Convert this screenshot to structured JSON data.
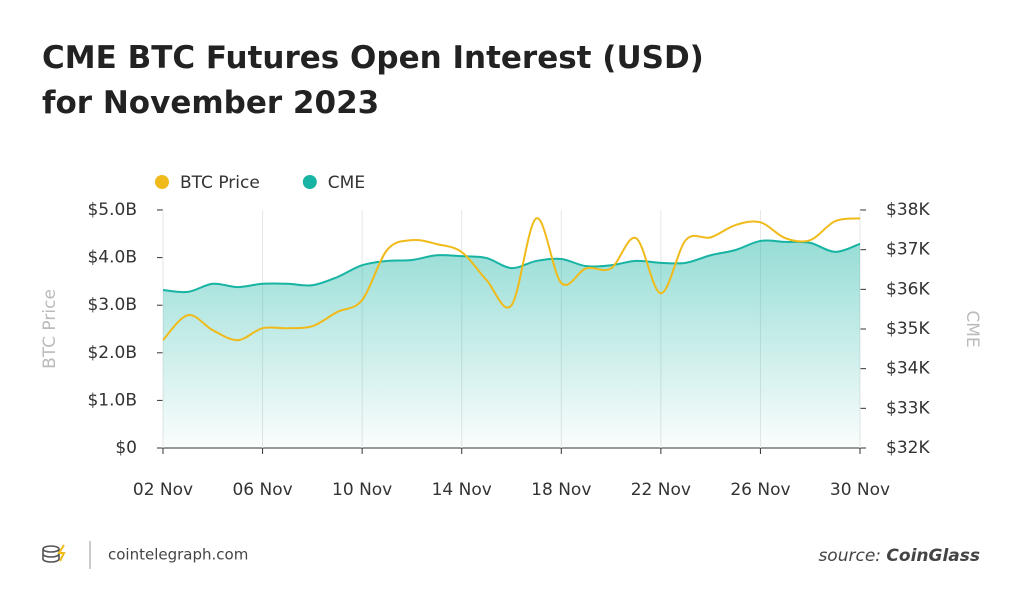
{
  "chart_data": {
    "type": "line",
    "title": "CME BTC Futures Open Interest (USD) for November 2023",
    "y_label": "BTC Price",
    "y2_label": "CME",
    "categories": [
      "02 Nov",
      null,
      null,
      null,
      "06 Nov",
      null,
      null,
      null,
      "10 Nov",
      null,
      null,
      null,
      "14 Nov",
      null,
      null,
      null,
      "18 Nov",
      null,
      null,
      null,
      "22 Nov",
      null,
      null,
      null,
      "26 Nov",
      null,
      null,
      null,
      "30 Nov"
    ],
    "series": [
      {
        "name": "BTC Price",
        "color": "#f0bb1a",
        "axis": "y2",
        "values": [
          34.72,
          35.35,
          34.97,
          34.72,
          35.02,
          35.02,
          35.07,
          35.43,
          35.73,
          36.99,
          37.24,
          37.14,
          36.94,
          36.23,
          35.6,
          37.79,
          36.16,
          36.53,
          36.53,
          37.29,
          35.9,
          37.24,
          37.31,
          37.62,
          37.69,
          37.29,
          37.24,
          37.72,
          37.79
        ]
      },
      {
        "name": "CME",
        "color": "#17b3a3",
        "fill": true,
        "values": [
          3.32,
          3.28,
          3.45,
          3.38,
          3.45,
          3.45,
          3.42,
          3.59,
          3.84,
          3.93,
          3.95,
          4.05,
          4.03,
          3.99,
          3.78,
          3.93,
          3.97,
          3.82,
          3.84,
          3.93,
          3.89,
          3.89,
          4.05,
          4.16,
          4.35,
          4.33,
          4.31,
          4.12,
          4.29
        ]
      }
    ],
    "ylim": [
      0,
      5
    ],
    "yticks": [
      {
        "value": 0,
        "label": "$0"
      },
      {
        "value": 1,
        "label": "$1.0B"
      },
      {
        "value": 2,
        "label": "$2.0B"
      },
      {
        "value": 3,
        "label": "$3.0B"
      },
      {
        "value": 4,
        "label": "$4.0B"
      },
      {
        "value": 5,
        "label": "$5.0B"
      }
    ],
    "y2lim": [
      32,
      38
    ],
    "y2ticks": [
      {
        "value": 32,
        "label": "$32K"
      },
      {
        "value": 33,
        "label": "$33K"
      },
      {
        "value": 34,
        "label": "$34K"
      },
      {
        "value": 35,
        "label": "$35K"
      },
      {
        "value": 36,
        "label": "$36K"
      },
      {
        "value": 37,
        "label": "$37K"
      },
      {
        "value": 38,
        "label": "$38K"
      }
    ],
    "grid": "x",
    "brand": "cointelegraph.com",
    "source_prefix": "source:",
    "source_name": "CoinGlass"
  }
}
